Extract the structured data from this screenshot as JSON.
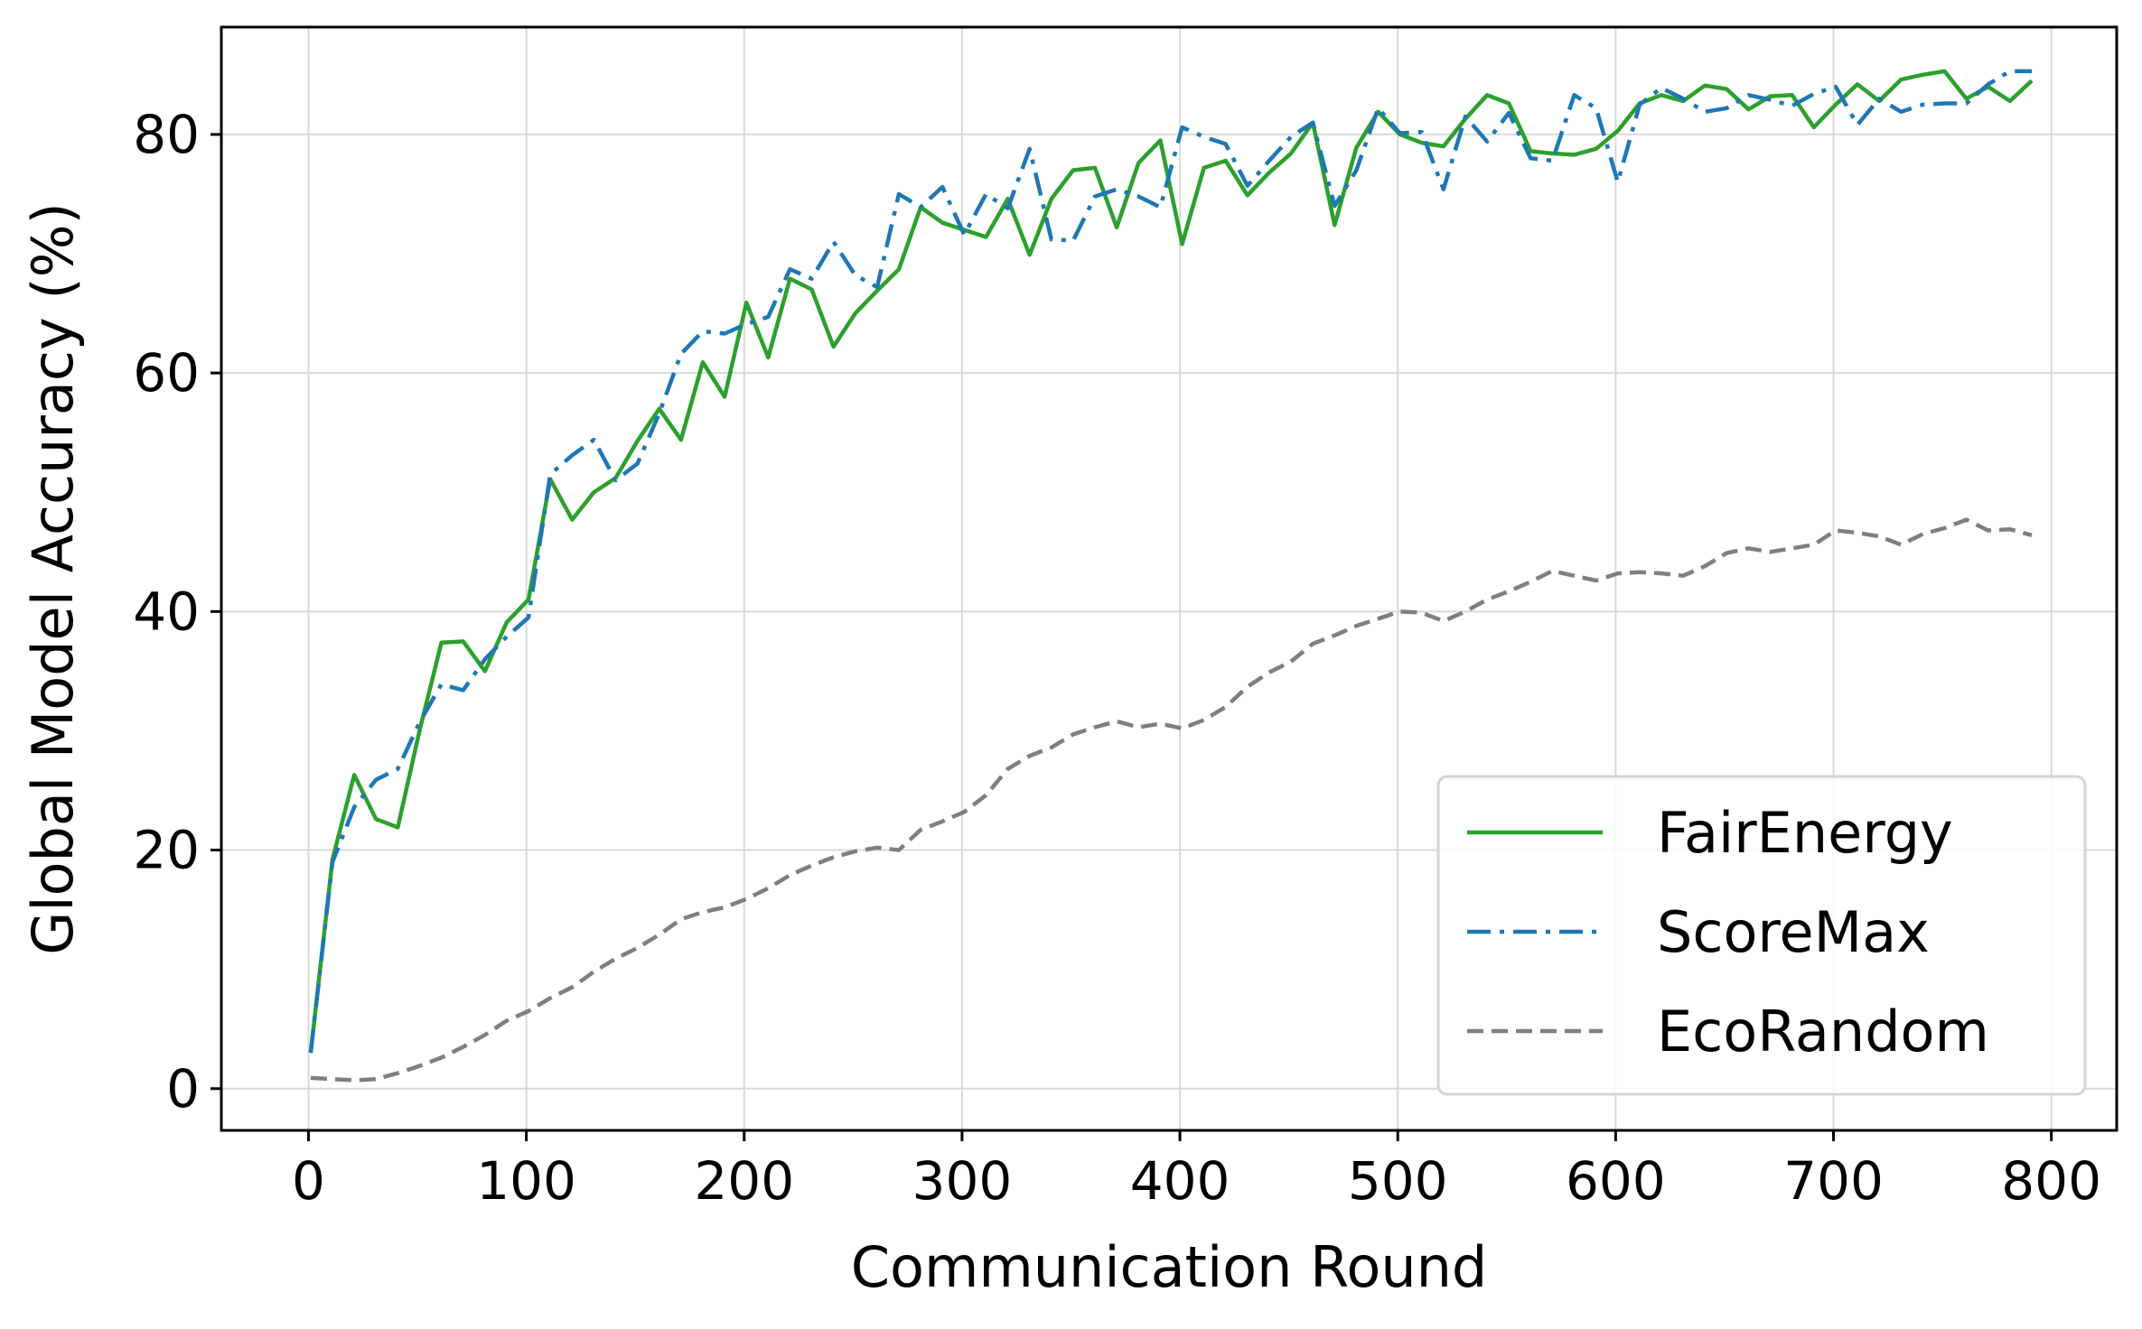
{
  "chart_data": {
    "type": "line",
    "xlabel": "Communication Round",
    "ylabel": "Global Model Accuracy (%)",
    "xlim": [
      -40,
      830
    ],
    "ylim": [
      -3.5,
      89
    ],
    "xticks": [
      0,
      100,
      200,
      300,
      400,
      500,
      600,
      700,
      800
    ],
    "yticks": [
      0,
      20,
      40,
      60,
      80
    ],
    "grid": true,
    "legend_position": "lower-right",
    "series": [
      {
        "name": "FairEnergy",
        "color": "#2ca02c",
        "style": "solid",
        "x": [
          1,
          11,
          21,
          31,
          41,
          51,
          61,
          71,
          81,
          91,
          101,
          111,
          121,
          131,
          141,
          151,
          161,
          171,
          181,
          191,
          201,
          211,
          221,
          231,
          241,
          251,
          261,
          271,
          281,
          291,
          301,
          311,
          321,
          331,
          341,
          351,
          361,
          371,
          381,
          391,
          401,
          411,
          421,
          431,
          441,
          451,
          461,
          471,
          481,
          491,
          501,
          511,
          521,
          531,
          541,
          551,
          561,
          571,
          581,
          591,
          601,
          611,
          621,
          631,
          641,
          651,
          661,
          671,
          681,
          691,
          701,
          711,
          721,
          731,
          741,
          751,
          761,
          771,
          781,
          791
        ],
        "values": [
          3.0,
          19.2,
          26.3,
          22.6,
          21.9,
          30.0,
          37.4,
          37.5,
          35.0,
          39.1,
          41.0,
          51.1,
          47.7,
          50.0,
          51.2,
          54.3,
          57.0,
          54.4,
          60.9,
          58.0,
          65.9,
          61.3,
          67.9,
          67.0,
          62.2,
          65.0,
          66.9,
          68.7,
          73.9,
          72.6,
          72.0,
          71.4,
          74.6,
          69.9,
          74.6,
          77.0,
          77.2,
          72.2,
          77.6,
          79.5,
          70.8,
          77.2,
          77.8,
          74.9,
          76.8,
          78.4,
          81.0,
          72.4,
          78.9,
          81.9,
          80.0,
          79.3,
          79.0,
          81.3,
          83.3,
          82.6,
          78.6,
          78.4,
          78.3,
          78.8,
          80.3,
          82.6,
          83.3,
          82.8,
          84.1,
          83.8,
          82.1,
          83.2,
          83.3,
          80.6,
          82.5,
          84.2,
          82.8,
          84.6,
          85.0,
          85.3,
          83.0,
          84.0,
          82.8,
          84.5
        ]
      },
      {
        "name": "ScoreMax",
        "color": "#1f77b4",
        "style": "dashdot",
        "x": [
          1,
          11,
          21,
          31,
          41,
          51,
          61,
          71,
          81,
          91,
          101,
          111,
          121,
          131,
          141,
          151,
          161,
          171,
          181,
          191,
          201,
          211,
          221,
          231,
          241,
          251,
          261,
          271,
          281,
          291,
          301,
          311,
          321,
          331,
          341,
          351,
          361,
          371,
          381,
          391,
          401,
          411,
          421,
          431,
          441,
          451,
          461,
          471,
          481,
          491,
          501,
          511,
          521,
          531,
          541,
          551,
          561,
          571,
          581,
          591,
          601,
          611,
          621,
          631,
          641,
          651,
          661,
          671,
          681,
          691,
          701,
          711,
          721,
          731,
          741,
          751,
          761,
          771,
          781,
          791
        ],
        "values": [
          3.0,
          19.0,
          23.6,
          25.9,
          26.8,
          30.7,
          33.9,
          33.4,
          36.0,
          37.9,
          39.5,
          51.5,
          53.1,
          54.4,
          51.0,
          52.4,
          56.6,
          61.6,
          63.5,
          63.3,
          64.1,
          64.7,
          68.7,
          67.9,
          71.0,
          68.2,
          67.2,
          75.0,
          73.9,
          75.6,
          71.6,
          75.0,
          73.8,
          78.8,
          71.2,
          71.1,
          74.8,
          75.4,
          74.8,
          73.9,
          80.6,
          79.8,
          79.2,
          75.7,
          77.8,
          79.8,
          81.0,
          74.0,
          77.0,
          82.2,
          80.1,
          80.2,
          75.4,
          81.5,
          79.4,
          81.8,
          78.0,
          77.8,
          83.3,
          82.2,
          76.0,
          82.5,
          83.9,
          83.0,
          81.9,
          82.2,
          83.3,
          82.9,
          82.4,
          83.4,
          84.0,
          80.8,
          83.0,
          81.9,
          82.5,
          82.6,
          82.6,
          84.2,
          85.3,
          85.3
        ]
      },
      {
        "name": "EcoRandom",
        "color": "#7f7f7f",
        "style": "dashed",
        "x": [
          1,
          11,
          21,
          31,
          41,
          51,
          61,
          71,
          81,
          91,
          101,
          111,
          121,
          131,
          141,
          151,
          161,
          171,
          181,
          191,
          201,
          211,
          221,
          231,
          241,
          251,
          261,
          271,
          281,
          291,
          301,
          311,
          321,
          331,
          341,
          351,
          361,
          371,
          381,
          391,
          401,
          411,
          421,
          431,
          441,
          451,
          461,
          471,
          481,
          491,
          501,
          511,
          521,
          531,
          541,
          551,
          561,
          571,
          581,
          591,
          601,
          611,
          621,
          631,
          641,
          651,
          661,
          671,
          681,
          691,
          701,
          711,
          721,
          731,
          741,
          751,
          761,
          771,
          781,
          791
        ],
        "values": [
          0.9,
          0.8,
          0.7,
          0.8,
          1.3,
          1.9,
          2.6,
          3.5,
          4.5,
          5.7,
          6.5,
          7.6,
          8.5,
          9.8,
          10.9,
          11.8,
          12.9,
          14.2,
          14.8,
          15.2,
          15.9,
          16.8,
          17.9,
          18.7,
          19.4,
          19.9,
          20.2,
          20.0,
          21.7,
          22.4,
          23.2,
          24.6,
          26.8,
          27.9,
          28.6,
          29.7,
          30.3,
          30.8,
          30.3,
          30.6,
          30.2,
          30.9,
          32.0,
          33.7,
          34.9,
          35.8,
          37.3,
          38.0,
          38.8,
          39.4,
          40.0,
          39.9,
          39.2,
          40.0,
          41.0,
          41.7,
          42.5,
          43.4,
          43.0,
          42.6,
          43.2,
          43.3,
          43.2,
          43.0,
          43.8,
          44.9,
          45.3,
          45.0,
          45.3,
          45.6,
          46.8,
          46.6,
          46.3,
          45.6,
          46.5,
          47.0,
          47.7,
          46.8,
          46.9,
          46.4
        ]
      }
    ]
  }
}
